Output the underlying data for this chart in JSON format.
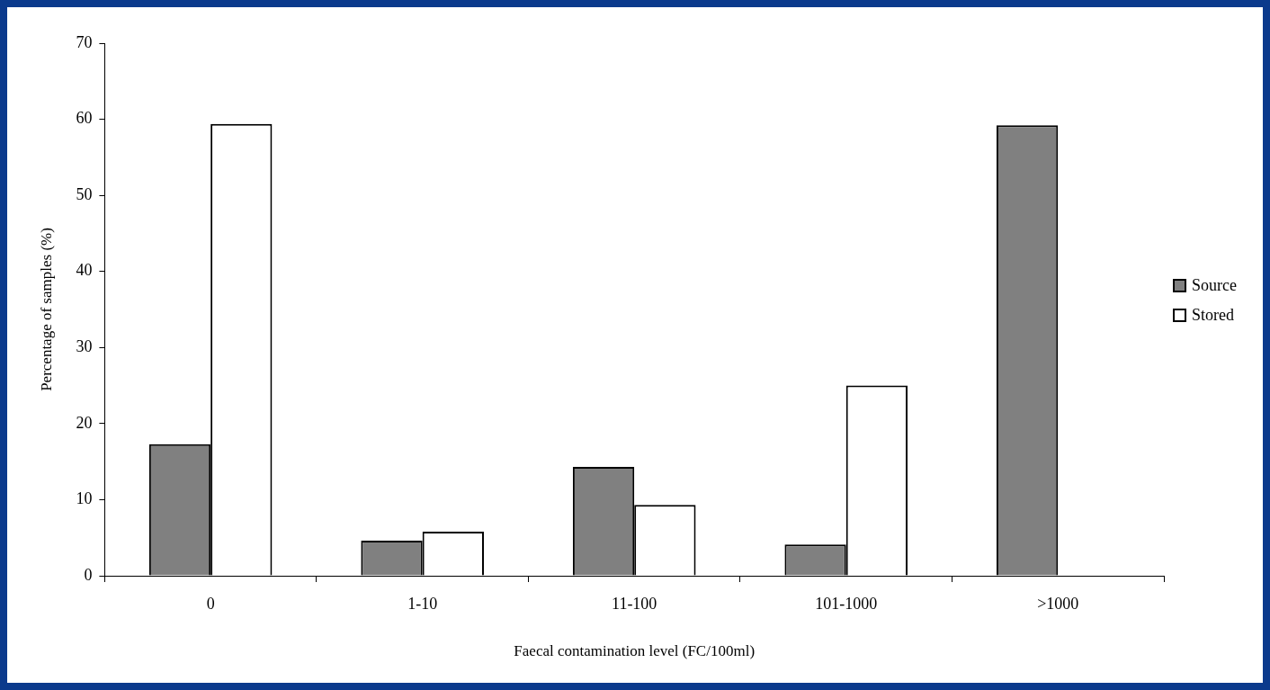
{
  "chart_data": {
    "type": "bar",
    "xlabel": "Faecal contamination level (FC/100ml)",
    "ylabel": "Percentage of samples (%)",
    "categories": [
      "0",
      "1-10",
      "11-100",
      "101-1000",
      ">1000"
    ],
    "series": [
      {
        "name": "Source",
        "color": "#808080",
        "values": [
          17.3,
          4.6,
          14.3,
          4.1,
          59.2
        ]
      },
      {
        "name": "Stored",
        "color": "#ffffff",
        "values": [
          59.4,
          5.8,
          9.3,
          25.0,
          0
        ]
      }
    ],
    "ylim": [
      0,
      70
    ],
    "yticks": [
      0,
      10,
      20,
      30,
      40,
      50,
      60,
      70
    ],
    "legend": "right"
  }
}
